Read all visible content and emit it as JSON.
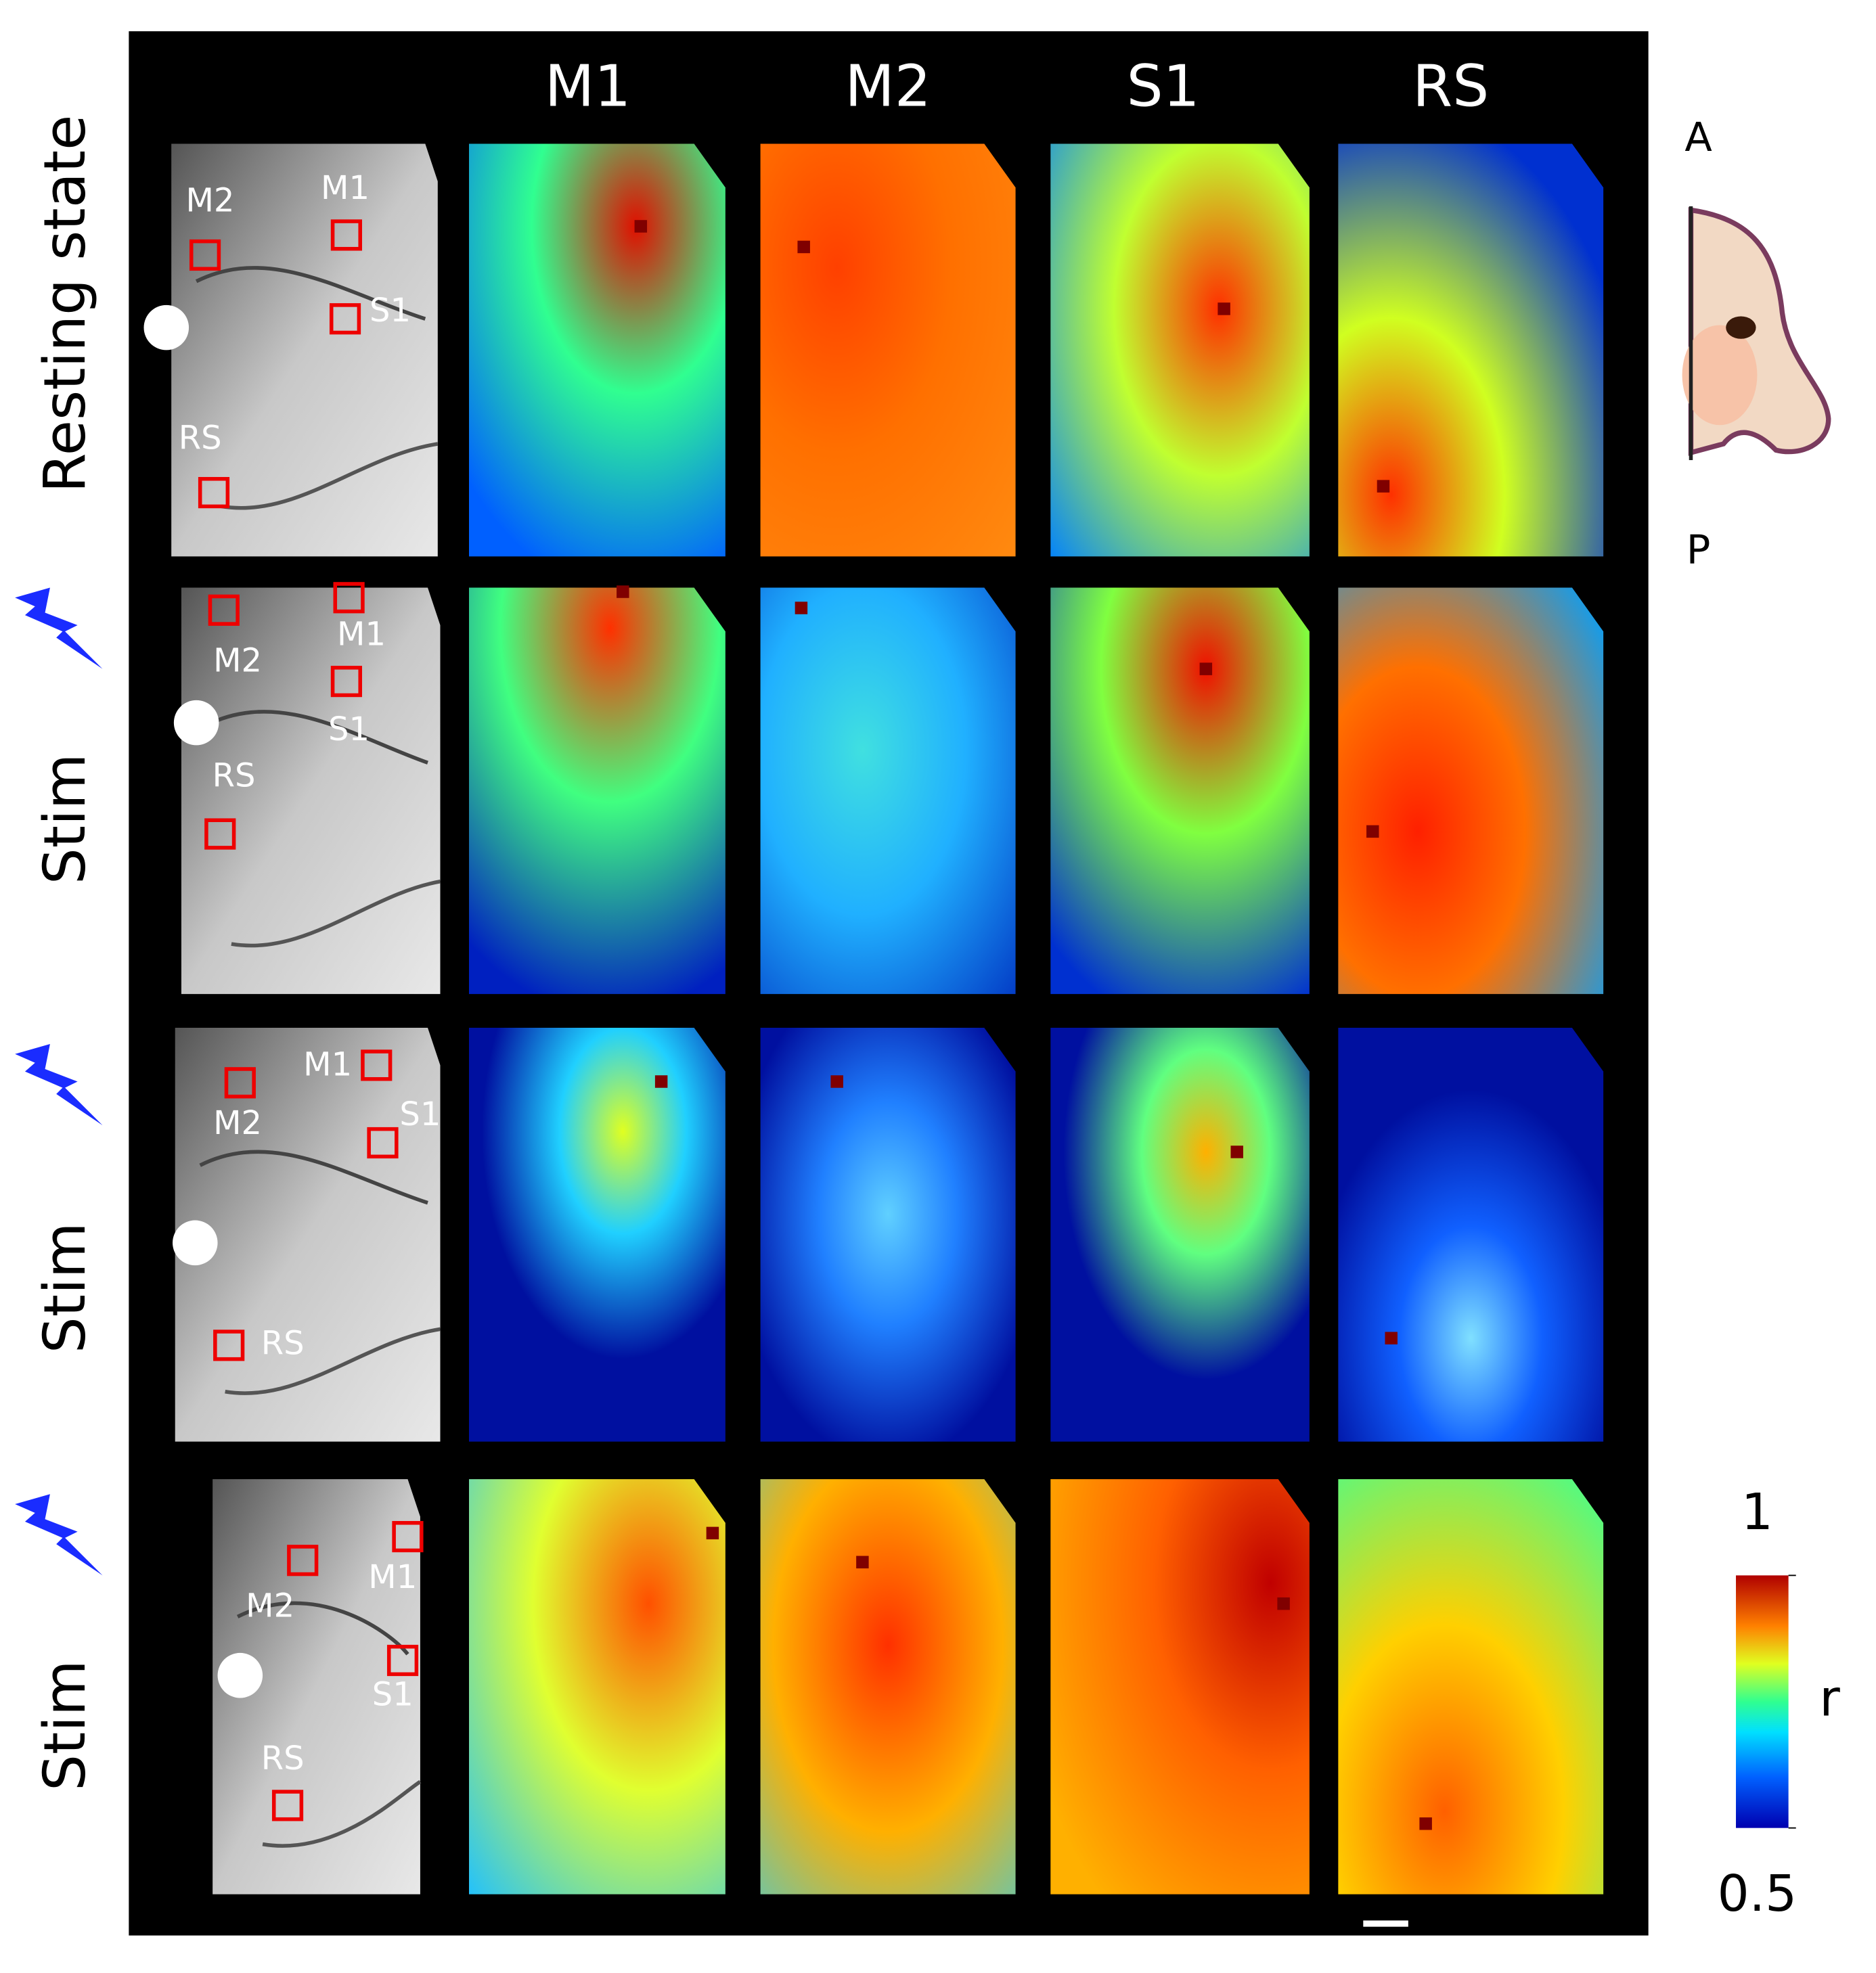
{
  "columns": [
    "M1",
    "M2",
    "S1",
    "RS"
  ],
  "rows": [
    {
      "label": "Resting state",
      "rois": [
        "M2",
        "M1",
        "S1",
        "RS"
      ]
    },
    {
      "label": "Stim",
      "rois": [
        "M2",
        "M1",
        "S1",
        "RS"
      ]
    },
    {
      "label": "Stim",
      "rois": [
        "M2",
        "M1",
        "S1",
        "RS"
      ]
    },
    {
      "label": "Stim",
      "rois": [
        "M2",
        "M1",
        "S1",
        "RS"
      ]
    }
  ],
  "orientation": {
    "anterior": "A",
    "posterior": "P"
  },
  "colorbar": {
    "label": "r",
    "lim": [
      0.5,
      1
    ],
    "ticks": [
      0.5,
      1
    ]
  }
}
